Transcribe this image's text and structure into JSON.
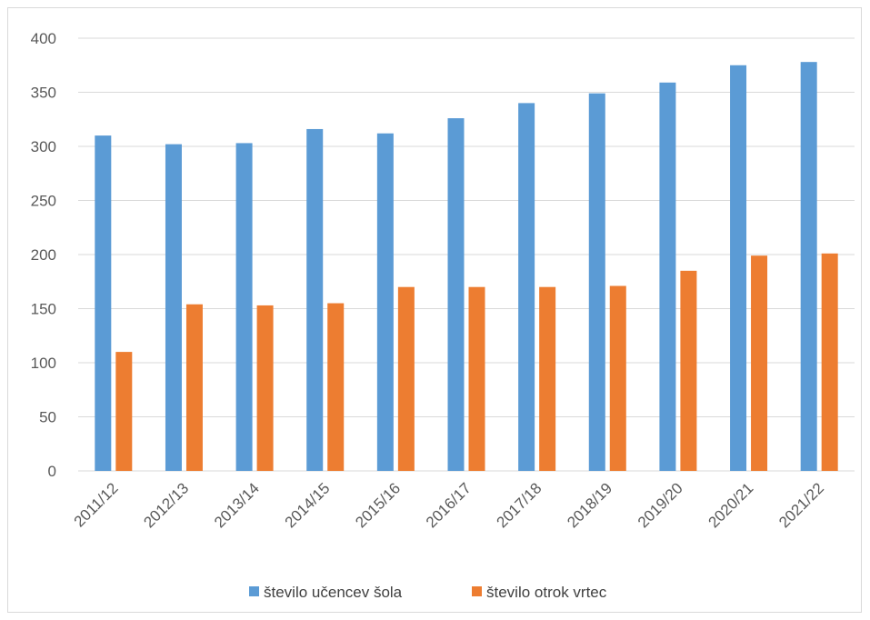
{
  "chart_data": {
    "type": "bar",
    "title": "",
    "xlabel": "",
    "ylabel": "",
    "categories": [
      "2011/12",
      "2012/13",
      "2013/14",
      "2014/15",
      "2015/16",
      "2016/17",
      "2017/18",
      "2018/19",
      "2019/20",
      "2020/21",
      "2021/22"
    ],
    "series": [
      {
        "name": "število učencev šola",
        "color": "#5b9bd5",
        "values": [
          310,
          302,
          303,
          316,
          312,
          326,
          340,
          349,
          359,
          375,
          378
        ]
      },
      {
        "name": "število otrok vrtec",
        "color": "#ed7d31",
        "values": [
          110,
          154,
          153,
          155,
          170,
          170,
          170,
          171,
          185,
          199,
          201
        ]
      }
    ],
    "ylim": [
      0,
      400
    ],
    "yticks": [
      0,
      50,
      100,
      150,
      200,
      250,
      300,
      350,
      400
    ],
    "grid": true,
    "legend_position": "bottom"
  }
}
